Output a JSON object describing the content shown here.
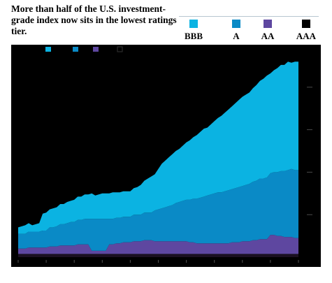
{
  "header": {
    "title": "More than half of the U.S. investment-grade index now sits in the lowest ratings tier."
  },
  "legend": [
    {
      "label": "BBB",
      "color": "#0bb3e2"
    },
    {
      "label": "A",
      "color": "#0a8ac6"
    },
    {
      "label": "AA",
      "color": "#5e47a0"
    },
    {
      "label": "AAA",
      "color": "#000000"
    }
  ],
  "colors": {
    "background": "#000000",
    "bbb": "#0bb3e2",
    "a": "#0a8ac6",
    "aa": "#5e47a0",
    "aaa": "#1a1020"
  },
  "chart_data": {
    "type": "area",
    "stacked": true,
    "ylim": [
      0,
      100
    ],
    "grid": false,
    "legend_position": "top-right",
    "x": [
      0,
      1,
      2,
      3,
      4,
      5,
      6,
      7,
      8,
      9,
      10,
      11,
      12,
      13,
      14,
      15,
      16,
      17,
      18,
      19,
      20,
      21,
      22,
      23,
      24,
      25,
      26,
      27,
      28,
      29,
      30,
      31,
      32,
      33,
      34,
      35,
      36,
      37,
      38,
      39,
      40,
      41,
      42,
      43,
      44,
      45,
      46,
      47,
      48,
      49,
      50,
      51,
      52,
      53,
      54,
      55,
      56,
      57,
      58,
      59,
      60,
      61,
      62,
      63,
      64,
      65,
      66,
      67,
      68,
      69,
      70,
      71,
      72,
      73,
      74,
      75,
      76,
      77,
      78,
      79,
      80
    ],
    "series": [
      {
        "values": [
          1.5,
          1.5,
          1.5,
          1.5,
          1.5,
          1.5,
          1.5,
          1.5,
          1.5,
          1.5,
          1.5,
          1.5,
          1.5,
          1.5,
          1.5,
          1.5,
          1.5,
          1.5,
          1.5,
          1.5,
          1.5,
          1.5,
          1.5,
          1.5,
          1.5,
          1.5,
          1.5,
          1.5,
          1.5,
          1.5,
          1.5,
          1.5,
          1.5,
          1.5,
          1.5,
          1.5,
          1.5,
          1.5,
          1.5,
          1.5,
          1.5,
          1.5,
          1.5,
          1.5,
          1.5,
          1.5,
          1.5,
          1.5,
          1.5,
          1.5,
          1.5,
          1.5,
          1.5,
          1.5,
          1.5,
          1.5,
          1.5,
          1.5,
          1.5,
          1.5,
          1.5,
          1.5,
          1.5,
          1.5,
          1.5,
          1.5,
          1.5,
          1.5,
          1.5,
          1.5,
          1.5,
          1.5,
          1.5,
          1.5,
          1.5,
          1.5,
          1.5,
          1.5,
          1.5,
          1.5,
          1.5
        ]
      },
      {
        "values": [
          2.5,
          2.5,
          2.5,
          3,
          3,
          3,
          3,
          3,
          3,
          3.5,
          3.5,
          3.5,
          4,
          4,
          4,
          4,
          4,
          4.5,
          4.5,
          4.5,
          4.5,
          1.5,
          1.5,
          1.5,
          1.5,
          1.5,
          4.5,
          4.5,
          5,
          5,
          5.5,
          5.5,
          5.5,
          6,
          6,
          6,
          6.5,
          6.5,
          6.5,
          6,
          6,
          6,
          6,
          6,
          6,
          6,
          6,
          6,
          6,
          5.5,
          5.5,
          5,
          5,
          5,
          5,
          5,
          5,
          5,
          5,
          5,
          5,
          5.5,
          5.5,
          5.5,
          6,
          6,
          6,
          6.5,
          6.5,
          7,
          7,
          7,
          9,
          9,
          8.5,
          8.5,
          8,
          8,
          8,
          7.5,
          7.5
        ]
      },
      {
        "values": [
          7,
          7,
          7,
          7.5,
          7.5,
          7.5,
          7.5,
          8,
          8,
          9,
          9,
          9.5,
          10,
          10,
          10.5,
          11,
          11,
          11.5,
          11.5,
          12,
          12,
          15,
          15,
          15,
          15,
          15,
          12,
          12,
          12,
          12,
          12,
          12,
          12,
          12.5,
          12.5,
          12.5,
          13,
          13,
          13,
          14.5,
          15,
          15.5,
          16,
          16.5,
          17,
          18,
          18.5,
          19,
          19.5,
          20,
          20.5,
          21,
          21.5,
          22,
          22.5,
          23,
          23.5,
          24,
          24,
          24.5,
          25,
          25,
          25.5,
          26,
          26,
          26.5,
          27,
          27.5,
          28,
          28.5,
          28.5,
          29,
          29,
          29.5,
          30,
          30.5,
          31,
          31.5,
          32,
          32,
          32
        ]
      },
      {
        "values": [
          3,
          3.5,
          4,
          4,
          3,
          3.5,
          4,
          8,
          8.5,
          8.5,
          9,
          9,
          9.5,
          9.5,
          10,
          10,
          10.5,
          11,
          11,
          11.5,
          11.5,
          12,
          11,
          11.5,
          12,
          12,
          12,
          12.5,
          12,
          12,
          12,
          12,
          12,
          12.5,
          13,
          14,
          15,
          16,
          17,
          17,
          19,
          21,
          22,
          23,
          24,
          24.5,
          25,
          26,
          27,
          28,
          29,
          30,
          31,
          32,
          32,
          33,
          34,
          35,
          36,
          37,
          38,
          39,
          40,
          41,
          42,
          42.5,
          43,
          44,
          45,
          46,
          47,
          48,
          47,
          48,
          49,
          50,
          50,
          51,
          50,
          51,
          51
        ]
      }
    ]
  }
}
